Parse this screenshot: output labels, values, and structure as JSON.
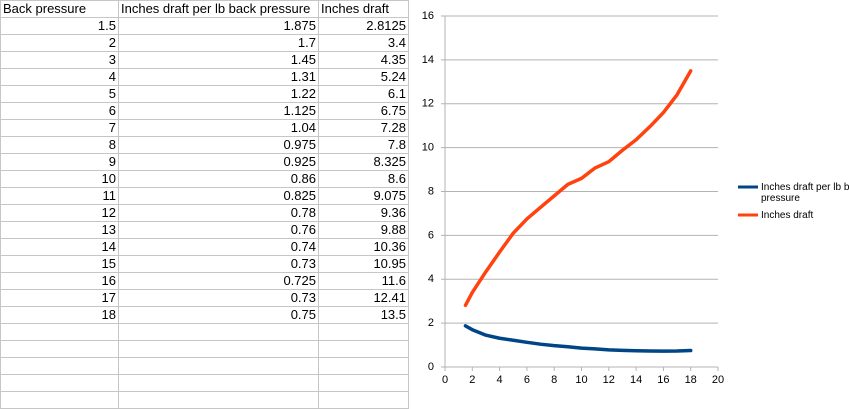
{
  "table": {
    "columns": [
      "Back pressure",
      "Inches draft per lb back pressure",
      "Inches draft"
    ],
    "rows": [
      [
        1.5,
        1.875,
        2.8125
      ],
      [
        2,
        1.7,
        3.4
      ],
      [
        3,
        1.45,
        4.35
      ],
      [
        4,
        1.31,
        5.24
      ],
      [
        5,
        1.22,
        6.1
      ],
      [
        6,
        1.125,
        6.75
      ],
      [
        7,
        1.04,
        7.28
      ],
      [
        8,
        0.975,
        7.8
      ],
      [
        9,
        0.925,
        8.325
      ],
      [
        10,
        0.86,
        8.6
      ],
      [
        11,
        0.825,
        9.075
      ],
      [
        12,
        0.78,
        9.36
      ],
      [
        13,
        0.76,
        9.88
      ],
      [
        14,
        0.74,
        10.36
      ],
      [
        15,
        0.73,
        10.95
      ],
      [
        16,
        0.725,
        11.6
      ],
      [
        17,
        0.73,
        12.41
      ],
      [
        18,
        0.75,
        13.5
      ]
    ]
  },
  "chart_data": {
    "type": "line",
    "x": [
      1.5,
      2,
      3,
      4,
      5,
      6,
      7,
      8,
      9,
      10,
      11,
      12,
      13,
      14,
      15,
      16,
      17,
      18
    ],
    "series": [
      {
        "name": "Inches draft per lb back pressure",
        "color": "#004586",
        "values": [
          1.875,
          1.7,
          1.45,
          1.31,
          1.22,
          1.125,
          1.04,
          0.975,
          0.925,
          0.86,
          0.825,
          0.78,
          0.76,
          0.74,
          0.73,
          0.725,
          0.73,
          0.75
        ]
      },
      {
        "name": "Inches draft",
        "color": "#ff420e",
        "values": [
          2.8125,
          3.4,
          4.35,
          5.24,
          6.1,
          6.75,
          7.28,
          7.8,
          8.325,
          8.6,
          9.075,
          9.36,
          9.88,
          10.36,
          10.95,
          11.6,
          12.41,
          13.5
        ]
      }
    ],
    "xlim": [
      0,
      20
    ],
    "ylim": [
      0,
      16
    ],
    "xticks": [
      0,
      2,
      4,
      6,
      8,
      10,
      12,
      14,
      16,
      18,
      20
    ],
    "yticks": [
      0,
      2,
      4,
      6,
      8,
      10,
      12,
      14,
      16
    ],
    "grid": true,
    "legend": "right"
  }
}
